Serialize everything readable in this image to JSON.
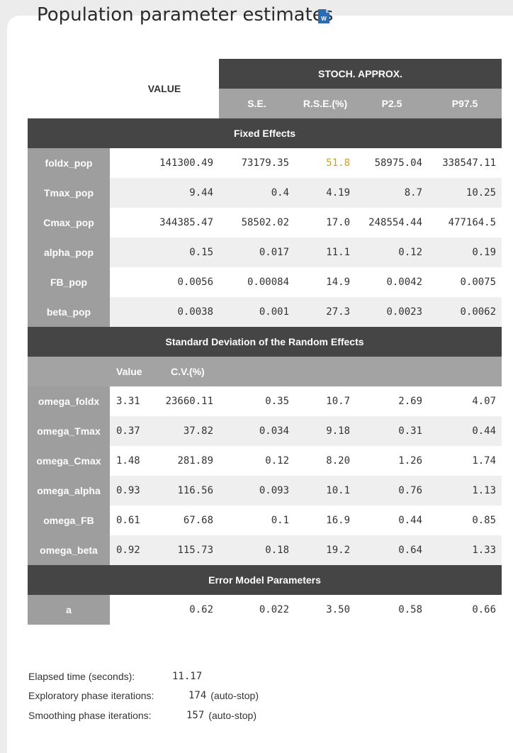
{
  "title": "Population parameter estimates",
  "icons": {
    "export": "word-icon",
    "copy": "copy-icon"
  },
  "header": {
    "value": "VALUE",
    "group": "STOCH. APPROX.",
    "columns": [
      "S.E.",
      "R.S.E.(%)",
      "P2.5",
      "P97.5"
    ]
  },
  "sections": {
    "fixed": "Fixed Effects",
    "random": "Standard Deviation of the Random Effects",
    "error": "Error Model Parameters"
  },
  "fixed_effects": [
    {
      "name": "foldx_pop",
      "value": "141300.49",
      "se": "73179.35",
      "rse": "51.8",
      "p25": "58975.04",
      "p975": "338547.11",
      "rse_warn": true
    },
    {
      "name": "Tmax_pop",
      "value": "9.44",
      "se": "0.4",
      "rse": "4.19",
      "p25": "8.7",
      "p975": "10.25"
    },
    {
      "name": "Cmax_pop",
      "value": "344385.47",
      "se": "58502.02",
      "rse": "17.0",
      "p25": "248554.44",
      "p975": "477164.5"
    },
    {
      "name": "alpha_pop",
      "value": "0.15",
      "se": "0.017",
      "rse": "11.1",
      "p25": "0.12",
      "p975": "0.19"
    },
    {
      "name": "FB_pop",
      "value": "0.0056",
      "se": "0.00084",
      "rse": "14.9",
      "p25": "0.0042",
      "p975": "0.0075"
    },
    {
      "name": "beta_pop",
      "value": "0.0038",
      "se": "0.001",
      "rse": "27.3",
      "p25": "0.0023",
      "p975": "0.0062"
    }
  ],
  "random_header": {
    "value": "Value",
    "cv": "C.V.(%)"
  },
  "random_effects": [
    {
      "name": "omega_foldx",
      "value": "3.31",
      "cv": "23660.11",
      "se": "0.35",
      "rse": "10.7",
      "p25": "2.69",
      "p975": "4.07"
    },
    {
      "name": "omega_Tmax",
      "value": "0.37",
      "cv": "37.82",
      "se": "0.034",
      "rse": "9.18",
      "p25": "0.31",
      "p975": "0.44"
    },
    {
      "name": "omega_Cmax",
      "value": "1.48",
      "cv": "281.89",
      "se": "0.12",
      "rse": "8.20",
      "p25": "1.26",
      "p975": "1.74"
    },
    {
      "name": "omega_alpha",
      "value": "0.93",
      "cv": "116.56",
      "se": "0.093",
      "rse": "10.1",
      "p25": "0.76",
      "p975": "1.13"
    },
    {
      "name": "omega_FB",
      "value": "0.61",
      "cv": "67.68",
      "se": "0.1",
      "rse": "16.9",
      "p25": "0.44",
      "p975": "0.85"
    },
    {
      "name": "omega_beta",
      "value": "0.92",
      "cv": "115.73",
      "se": "0.18",
      "rse": "19.2",
      "p25": "0.64",
      "p975": "1.33"
    }
  ],
  "error_model": [
    {
      "name": "a",
      "value": "0.62",
      "se": "0.022",
      "rse": "3.50",
      "p25": "0.58",
      "p975": "0.66"
    }
  ],
  "stats": {
    "elapsed_label": "Elapsed time (seconds):",
    "elapsed_value": "11.17",
    "exploratory_label": "Exploratory phase iterations:",
    "exploratory_value": "174",
    "exploratory_note": "(auto-stop)",
    "smoothing_label": "Smoothing phase iterations:",
    "smoothing_value": "157",
    "smoothing_note": "(auto-stop)"
  },
  "colors": {
    "dark_header": "#454545",
    "sub_header": "#a3a3a3",
    "warn": "#c9a227"
  }
}
